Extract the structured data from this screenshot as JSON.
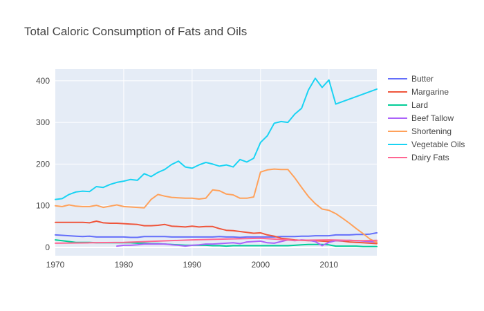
{
  "chart_data": {
    "type": "line",
    "title": "Total Caloric Consumption of Fats and Oils",
    "xlabel": "",
    "ylabel": "",
    "xlim": [
      1970,
      2017
    ],
    "ylim": [
      -20,
      428
    ],
    "xticks": [
      1970,
      1980,
      1990,
      2000,
      2010
    ],
    "yticks": [
      0,
      100,
      200,
      300,
      400
    ],
    "grid": true,
    "legend": "right",
    "series": [
      {
        "name": "Butter",
        "color": "#636efa",
        "x": [
          1970,
          1971,
          1972,
          1973,
          1974,
          1975,
          1976,
          1977,
          1978,
          1979,
          1980,
          1981,
          1982,
          1983,
          1984,
          1985,
          1986,
          1987,
          1988,
          1989,
          1990,
          1991,
          1992,
          1993,
          1994,
          1995,
          1996,
          1997,
          1998,
          1999,
          2000,
          2001,
          2002,
          2003,
          2004,
          2005,
          2006,
          2007,
          2008,
          2009,
          2010,
          2011,
          2012,
          2013,
          2014,
          2015,
          2016,
          2017
        ],
        "values": [
          30,
          29,
          28,
          27,
          26,
          27,
          25,
          25,
          25,
          25,
          25,
          24,
          24,
          26,
          26,
          26,
          26,
          25,
          25,
          25,
          25,
          25,
          25,
          25,
          26,
          25,
          25,
          24,
          25,
          25,
          25,
          25,
          25,
          26,
          26,
          26,
          27,
          27,
          28,
          28,
          28,
          30,
          30,
          30,
          31,
          31,
          32,
          35
        ]
      },
      {
        "name": "Margarine",
        "color": "#ef553b",
        "x": [
          1970,
          1971,
          1972,
          1973,
          1974,
          1975,
          1976,
          1977,
          1978,
          1979,
          1980,
          1981,
          1982,
          1983,
          1984,
          1985,
          1986,
          1987,
          1988,
          1989,
          1990,
          1991,
          1992,
          1993,
          1994,
          1995,
          1996,
          1997,
          1998,
          1999,
          2000,
          2001,
          2002,
          2003,
          2004,
          2005,
          2006,
          2007,
          2008,
          2009,
          2010,
          2011,
          2012,
          2013,
          2014,
          2015,
          2016,
          2017
        ],
        "values": [
          60,
          60,
          60,
          60,
          60,
          59,
          63,
          59,
          58,
          58,
          57,
          56,
          55,
          52,
          52,
          53,
          55,
          51,
          50,
          49,
          51,
          49,
          50,
          50,
          45,
          41,
          40,
          38,
          36,
          34,
          35,
          30,
          27,
          22,
          20,
          18,
          17,
          16,
          16,
          15,
          14,
          16,
          15,
          13,
          12,
          11,
          10,
          9
        ]
      },
      {
        "name": "Lard",
        "color": "#00cc96",
        "x": [
          1970,
          1971,
          1972,
          1973,
          1974,
          1975,
          1976,
          1977,
          1978,
          1979,
          1980,
          1981,
          1982,
          1983,
          1984,
          1985,
          1986,
          1987,
          1988,
          1989,
          1990,
          1991,
          1992,
          1993,
          1994,
          1995,
          1996,
          1997,
          1998,
          1999,
          2000,
          2001,
          2002,
          2003,
          2004,
          2005,
          2006,
          2007,
          2008,
          2009,
          2010,
          2011,
          2012,
          2013,
          2014,
          2015,
          2016,
          2017
        ],
        "values": [
          18,
          16,
          14,
          12,
          12,
          12,
          11,
          11,
          11,
          11,
          11,
          11,
          10,
          10,
          9,
          9,
          8,
          7,
          6,
          5,
          5,
          5,
          5,
          4,
          4,
          3,
          4,
          4,
          4,
          4,
          4,
          4,
          4,
          4,
          4,
          5,
          6,
          7,
          7,
          7,
          6,
          3,
          3,
          3,
          3,
          2,
          2,
          2
        ]
      },
      {
        "name": "Beef Tallow",
        "color": "#ab63fa",
        "x": [
          1979,
          1980,
          1981,
          1982,
          1983,
          1984,
          1985,
          1986,
          1987,
          1988,
          1989,
          1990,
          1991,
          1992,
          1993,
          1994,
          1995,
          1996,
          1997,
          1998,
          1999,
          2000,
          2001,
          2002,
          2003,
          2004,
          2005,
          2006,
          2007,
          2008,
          2009,
          2010,
          2011,
          2012,
          2013,
          2014,
          2015,
          2016,
          2017
        ],
        "values": [
          3,
          5,
          5,
          6,
          8,
          8,
          8,
          8,
          6,
          5,
          3,
          5,
          6,
          8,
          8,
          9,
          10,
          11,
          9,
          13,
          14,
          15,
          11,
          10,
          14,
          18,
          16,
          18,
          17,
          14,
          4,
          12,
          16,
          16,
          17,
          16,
          15,
          14,
          13
        ]
      },
      {
        "name": "Shortening",
        "color": "#ffa15a",
        "x": [
          1970,
          1971,
          1972,
          1973,
          1974,
          1975,
          1976,
          1977,
          1978,
          1979,
          1980,
          1981,
          1982,
          1983,
          1984,
          1985,
          1986,
          1987,
          1988,
          1989,
          1990,
          1991,
          1992,
          1993,
          1994,
          1995,
          1996,
          1997,
          1998,
          1999,
          2000,
          2001,
          2002,
          2003,
          2004,
          2005,
          2006,
          2007,
          2008,
          2009,
          2010,
          2011,
          2012,
          2013,
          2014,
          2015,
          2016,
          2017
        ],
        "values": [
          100,
          98,
          102,
          99,
          98,
          98,
          101,
          96,
          99,
          102,
          98,
          97,
          96,
          95,
          115,
          127,
          123,
          120,
          119,
          118,
          118,
          116,
          118,
          138,
          136,
          128,
          126,
          118,
          118,
          121,
          181,
          186,
          188,
          187,
          187,
          167,
          144,
          122,
          105,
          92,
          89,
          81,
          70,
          58,
          45,
          33,
          20,
          12
        ]
      },
      {
        "name": "Vegetable Oils",
        "color": "#19d3f3",
        "x": [
          1970,
          1971,
          1972,
          1973,
          1974,
          1975,
          1976,
          1977,
          1978,
          1979,
          1980,
          1981,
          1982,
          1983,
          1984,
          1985,
          1986,
          1987,
          1988,
          1989,
          1990,
          1991,
          1992,
          1993,
          1994,
          1995,
          1996,
          1997,
          1998,
          1999,
          2000,
          2001,
          2002,
          2003,
          2004,
          2005,
          2006,
          2007,
          2008,
          2009,
          2010,
          2011,
          2017
        ],
        "values": [
          115,
          117,
          127,
          133,
          135,
          134,
          146,
          144,
          151,
          156,
          159,
          163,
          161,
          177,
          170,
          180,
          187,
          199,
          207,
          193,
          190,
          198,
          204,
          200,
          195,
          198,
          193,
          211,
          205,
          214,
          252,
          268,
          298,
          302,
          300,
          320,
          334,
          378,
          406,
          384,
          402,
          344,
          380
        ]
      },
      {
        "name": "Dairy Fats",
        "color": "#ff6692",
        "x": [
          1970,
          1975,
          1980,
          1985,
          1990,
          1995,
          2000,
          2005,
          2010,
          2015,
          2017
        ],
        "values": [
          10,
          11,
          12,
          15,
          18,
          20,
          22,
          17,
          18,
          16,
          17
        ]
      }
    ]
  }
}
